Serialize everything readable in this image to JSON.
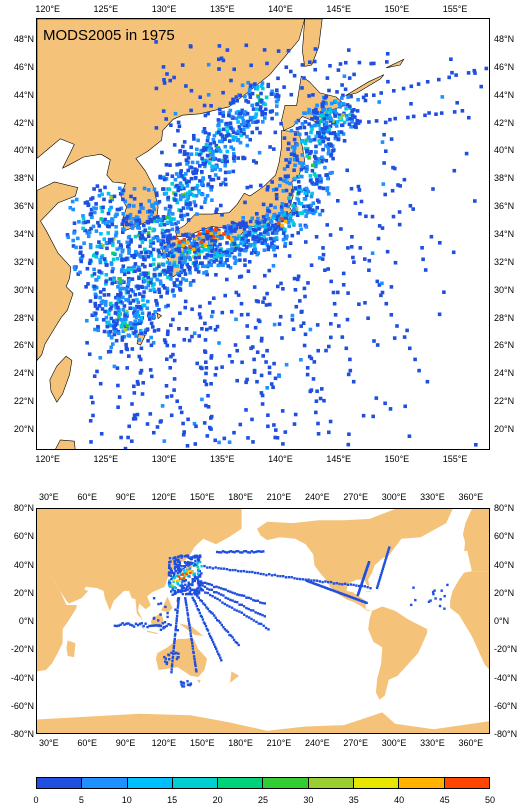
{
  "map_top": {
    "title": "MODS2005 in 1975",
    "x_ticks": [
      "120°E",
      "125°E",
      "130°E",
      "135°E",
      "140°E",
      "145°E",
      "150°E",
      "155°E"
    ],
    "y_ticks": [
      "48°N",
      "46°N",
      "44°N",
      "42°N",
      "40°N",
      "38°N",
      "36°N",
      "34°N",
      "32°N",
      "30°N",
      "28°N",
      "26°N",
      "24°N",
      "22°N",
      "20°N"
    ],
    "lon_range": [
      119,
      158
    ],
    "lat_range": [
      18.5,
      49.5
    ]
  },
  "map_bottom": {
    "x_ticks": [
      "30°E",
      "60°E",
      "90°E",
      "120°E",
      "150°E",
      "180°E",
      "210°E",
      "240°E",
      "270°E",
      "300°E",
      "330°E",
      "360°E"
    ],
    "y_ticks": [
      "80°N",
      "60°N",
      "40°N",
      "20°N",
      "0°N",
      "-20°N",
      "-40°N",
      "-60°N",
      "-80°N"
    ],
    "lon_range": [
      20,
      375
    ],
    "lat_range": [
      -80,
      80
    ]
  },
  "colorbar": {
    "labels": [
      "0",
      "5",
      "10",
      "15",
      "20",
      "25",
      "30",
      "35",
      "40",
      "45",
      "50"
    ],
    "colors": [
      "#1f4fe0",
      "#1e90ff",
      "#00bfff",
      "#00ced1",
      "#00d27a",
      "#32cd32",
      "#9acd32",
      "#e6e600",
      "#ffb300",
      "#ff4500"
    ]
  },
  "colors": {
    "land": "#f5c27a",
    "ocean": "#ffffff",
    "low_density": "#1f4fe0"
  }
}
